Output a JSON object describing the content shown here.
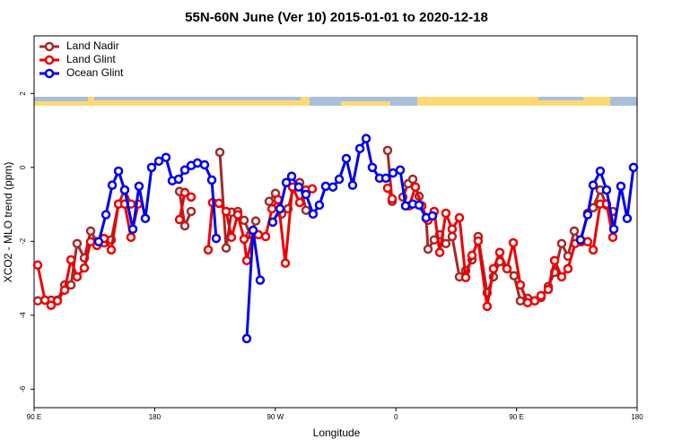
{
  "chart_data": {
    "type": "line",
    "title": "55N-60N June (Ver 10)   2015-01-01 to 2020-12-18",
    "x_label": "Longitude",
    "y_label": "XCO2 - MLO trend (ppm)",
    "xlim": [
      90,
      540
    ],
    "xticks": [
      {
        "value": 90,
        "label": "90 E"
      },
      {
        "value": 180,
        "label": "180"
      },
      {
        "value": 270,
        "label": "90 W"
      },
      {
        "value": 360,
        "label": "0"
      },
      {
        "value": 450,
        "label": "90 E"
      },
      {
        "value": 540,
        "label": "180"
      }
    ],
    "ylim": [
      -6.5,
      3.56
    ],
    "yticks": [
      -6,
      -4,
      -2,
      0,
      2
    ],
    "legend": "top-left",
    "series": [
      {
        "name": "Land Nadir",
        "color": "#a52a2a",
        "x": [
          92.7,
          98.1,
          102.7,
          107.4,
          112.8,
          117.5,
          122.1,
          127.5,
          132.2,
          136.9,
          142.2,
          147.6,
          153.0,
          157.6,
          162.3,
          null,
          198.5,
          202.5,
          207.2,
          null,
          228.6,
          233.3,
          237.3,
          242.0,
          246.7,
          251.4,
          255.4,
          null,
          265.4,
          270.1,
          274.8,
          279.5,
          283.5,
          288.2,
          292.9,
          null,
          353.8,
          357.2,
          null,
          365.2,
          369.2,
          372.6,
          377.3,
          382.6,
          384.0,
          388.6,
          392.7,
          397.3,
          402.0,
          407.4,
          412.1,
          416.8,
          421.4,
          428.1,
          432.8,
          437.5,
          442.9,
          448.2,
          452.9,
          458.3,
          463.6,
          468.3,
          473.7,
          478.4,
          483.7,
          488.4,
          493.1,
          497.8,
          503.1,
          507.2,
          512.5,
          517.2,
          521.9
        ],
        "values": [
          -3.61,
          -3.59,
          -3.59,
          -3.59,
          -3.18,
          -3.18,
          -2.06,
          -2.45,
          -1.72,
          -2.01,
          -2.04,
          -1.96,
          -0.99,
          -0.61,
          -0.99,
          null,
          -0.65,
          -1.58,
          -1.19,
          null,
          0.41,
          -2.18,
          -1.21,
          -1.19,
          -1.43,
          -1.82,
          -1.45,
          null,
          -0.92,
          -0.7,
          -1.26,
          -1.12,
          -0.56,
          -0.41,
          -1.16,
          null,
          0.46,
          -0.92,
          null,
          -0.8,
          -0.44,
          -0.32,
          -0.78,
          -1.38,
          -2.21,
          -1.96,
          -1.82,
          -2.06,
          -1.87,
          -2.96,
          -2.79,
          -2.5,
          -1.87,
          -3.39,
          -2.96,
          -2.55,
          -2.74,
          -2.93,
          -3.61,
          -3.54,
          -3.61,
          -3.52,
          -3.22,
          -2.84,
          -2.06,
          -2.4,
          -1.72,
          -2.01,
          -1.24,
          -1.09,
          -0.61,
          -1.02,
          -1.19
        ]
      },
      {
        "name": "Land Glint",
        "color": "#ee0000",
        "x": [
          92.7,
          98.1,
          102.7,
          107.4,
          112.8,
          117.5,
          122.1,
          127.5,
          132.2,
          136.9,
          142.2,
          147.6,
          153.0,
          157.6,
          162.3,
          167.7,
          null,
          198.5,
          202.5,
          207.2,
          null,
          219.9,
          223.2,
          227.9,
          233.3,
          237.3,
          242.0,
          246.7,
          248.7,
          253.4,
          257.4,
          262.8,
          267.5,
          272.1,
          277.5,
          282.8,
          288.2,
          292.9,
          297.6,
          null,
          353.8,
          357.2,
          null,
          369.9,
          374.6,
          379.3,
          384.0,
          388.6,
          392.7,
          397.3,
          402.0,
          407.4,
          412.1,
          416.8,
          421.4,
          428.1,
          432.8,
          437.5,
          442.9,
          447.6,
          452.9,
          458.3,
          463.6,
          468.3,
          473.7,
          478.4,
          483.7,
          488.4,
          493.8,
          498.5,
          503.1,
          507.2,
          512.5,
          517.2,
          521.9
        ],
        "values": [
          -2.64,
          -3.59,
          -3.73,
          -3.61,
          -3.32,
          -2.5,
          -2.96,
          -2.72,
          -2.01,
          -2.11,
          -1.92,
          -2.23,
          -0.99,
          -0.99,
          -1.89,
          -0.99,
          null,
          -1.41,
          -0.68,
          -0.8,
          null,
          -2.23,
          -0.95,
          -0.97,
          -1.19,
          -1.89,
          -1.28,
          -1.94,
          -2.52,
          -1.82,
          -1.82,
          -1.87,
          -1.12,
          -0.87,
          -2.59,
          -0.53,
          -0.95,
          -0.61,
          -0.58,
          null,
          -0.56,
          -0.85,
          null,
          -1.04,
          -0.53,
          -1.04,
          -1.43,
          -1.19,
          -2.3,
          -1.24,
          -1.67,
          -1.36,
          -2.98,
          -2.38,
          -1.99,
          -3.76,
          -2.74,
          -2.3,
          -2.74,
          -2.04,
          -3.18,
          -3.66,
          -3.61,
          -3.47,
          -3.3,
          -2.52,
          -2.96,
          -2.74,
          -2.06,
          -2.01,
          -2.01,
          -2.23,
          -0.99,
          -0.99,
          -1.89
        ]
      },
      {
        "name": "Ocean Glint",
        "color": "#0000ee",
        "x": [
          138.2,
          143.6,
          148.3,
          153.0,
          157.6,
          163.7,
          168.3,
          173.0,
          177.7,
          183.1,
          188.4,
          193.1,
          197.8,
          202.5,
          207.2,
          211.9,
          217.2,
          222.6,
          225.9,
          null,
          248.7,
          253.4,
          258.7,
          null,
          268.1,
          273.5,
          278.2,
          282.2,
          287.5,
          292.9,
          298.2,
          302.9,
          307.6,
          313.0,
          317.7,
          323.0,
          327.7,
          333.1,
          337.8,
          342.4,
          347.8,
          352.5,
          357.8,
          363.2,
          367.2,
          372.6,
          377.3,
          382.6,
          387.3,
          null,
          497.8,
          503.1,
          507.2,
          512.5,
          517.2,
          522.6,
          527.9,
          532.6,
          537.3
        ],
        "values": [
          -2.01,
          -1.28,
          -0.48,
          -0.1,
          -0.61,
          -1.67,
          -0.51,
          -1.38,
          0,
          0.17,
          0.27,
          -0.36,
          -0.32,
          -0.07,
          0.05,
          0.12,
          0.07,
          -0.34,
          -1.92,
          null,
          -4.63,
          -1.7,
          -3.05,
          null,
          -1.48,
          -1.12,
          -0.41,
          -0.24,
          -0.53,
          -0.73,
          -1.26,
          -1.02,
          -0.51,
          -0.53,
          -0.32,
          0.24,
          -0.48,
          0.51,
          0.78,
          0,
          -0.29,
          -0.29,
          -0.15,
          -0.07,
          -1.04,
          -0.99,
          -1.02,
          -1.36,
          -1.31,
          null,
          -1.96,
          -1.28,
          -0.48,
          -0.1,
          -0.61,
          -1.67,
          -0.51,
          -1.38,
          0
        ]
      }
    ]
  }
}
